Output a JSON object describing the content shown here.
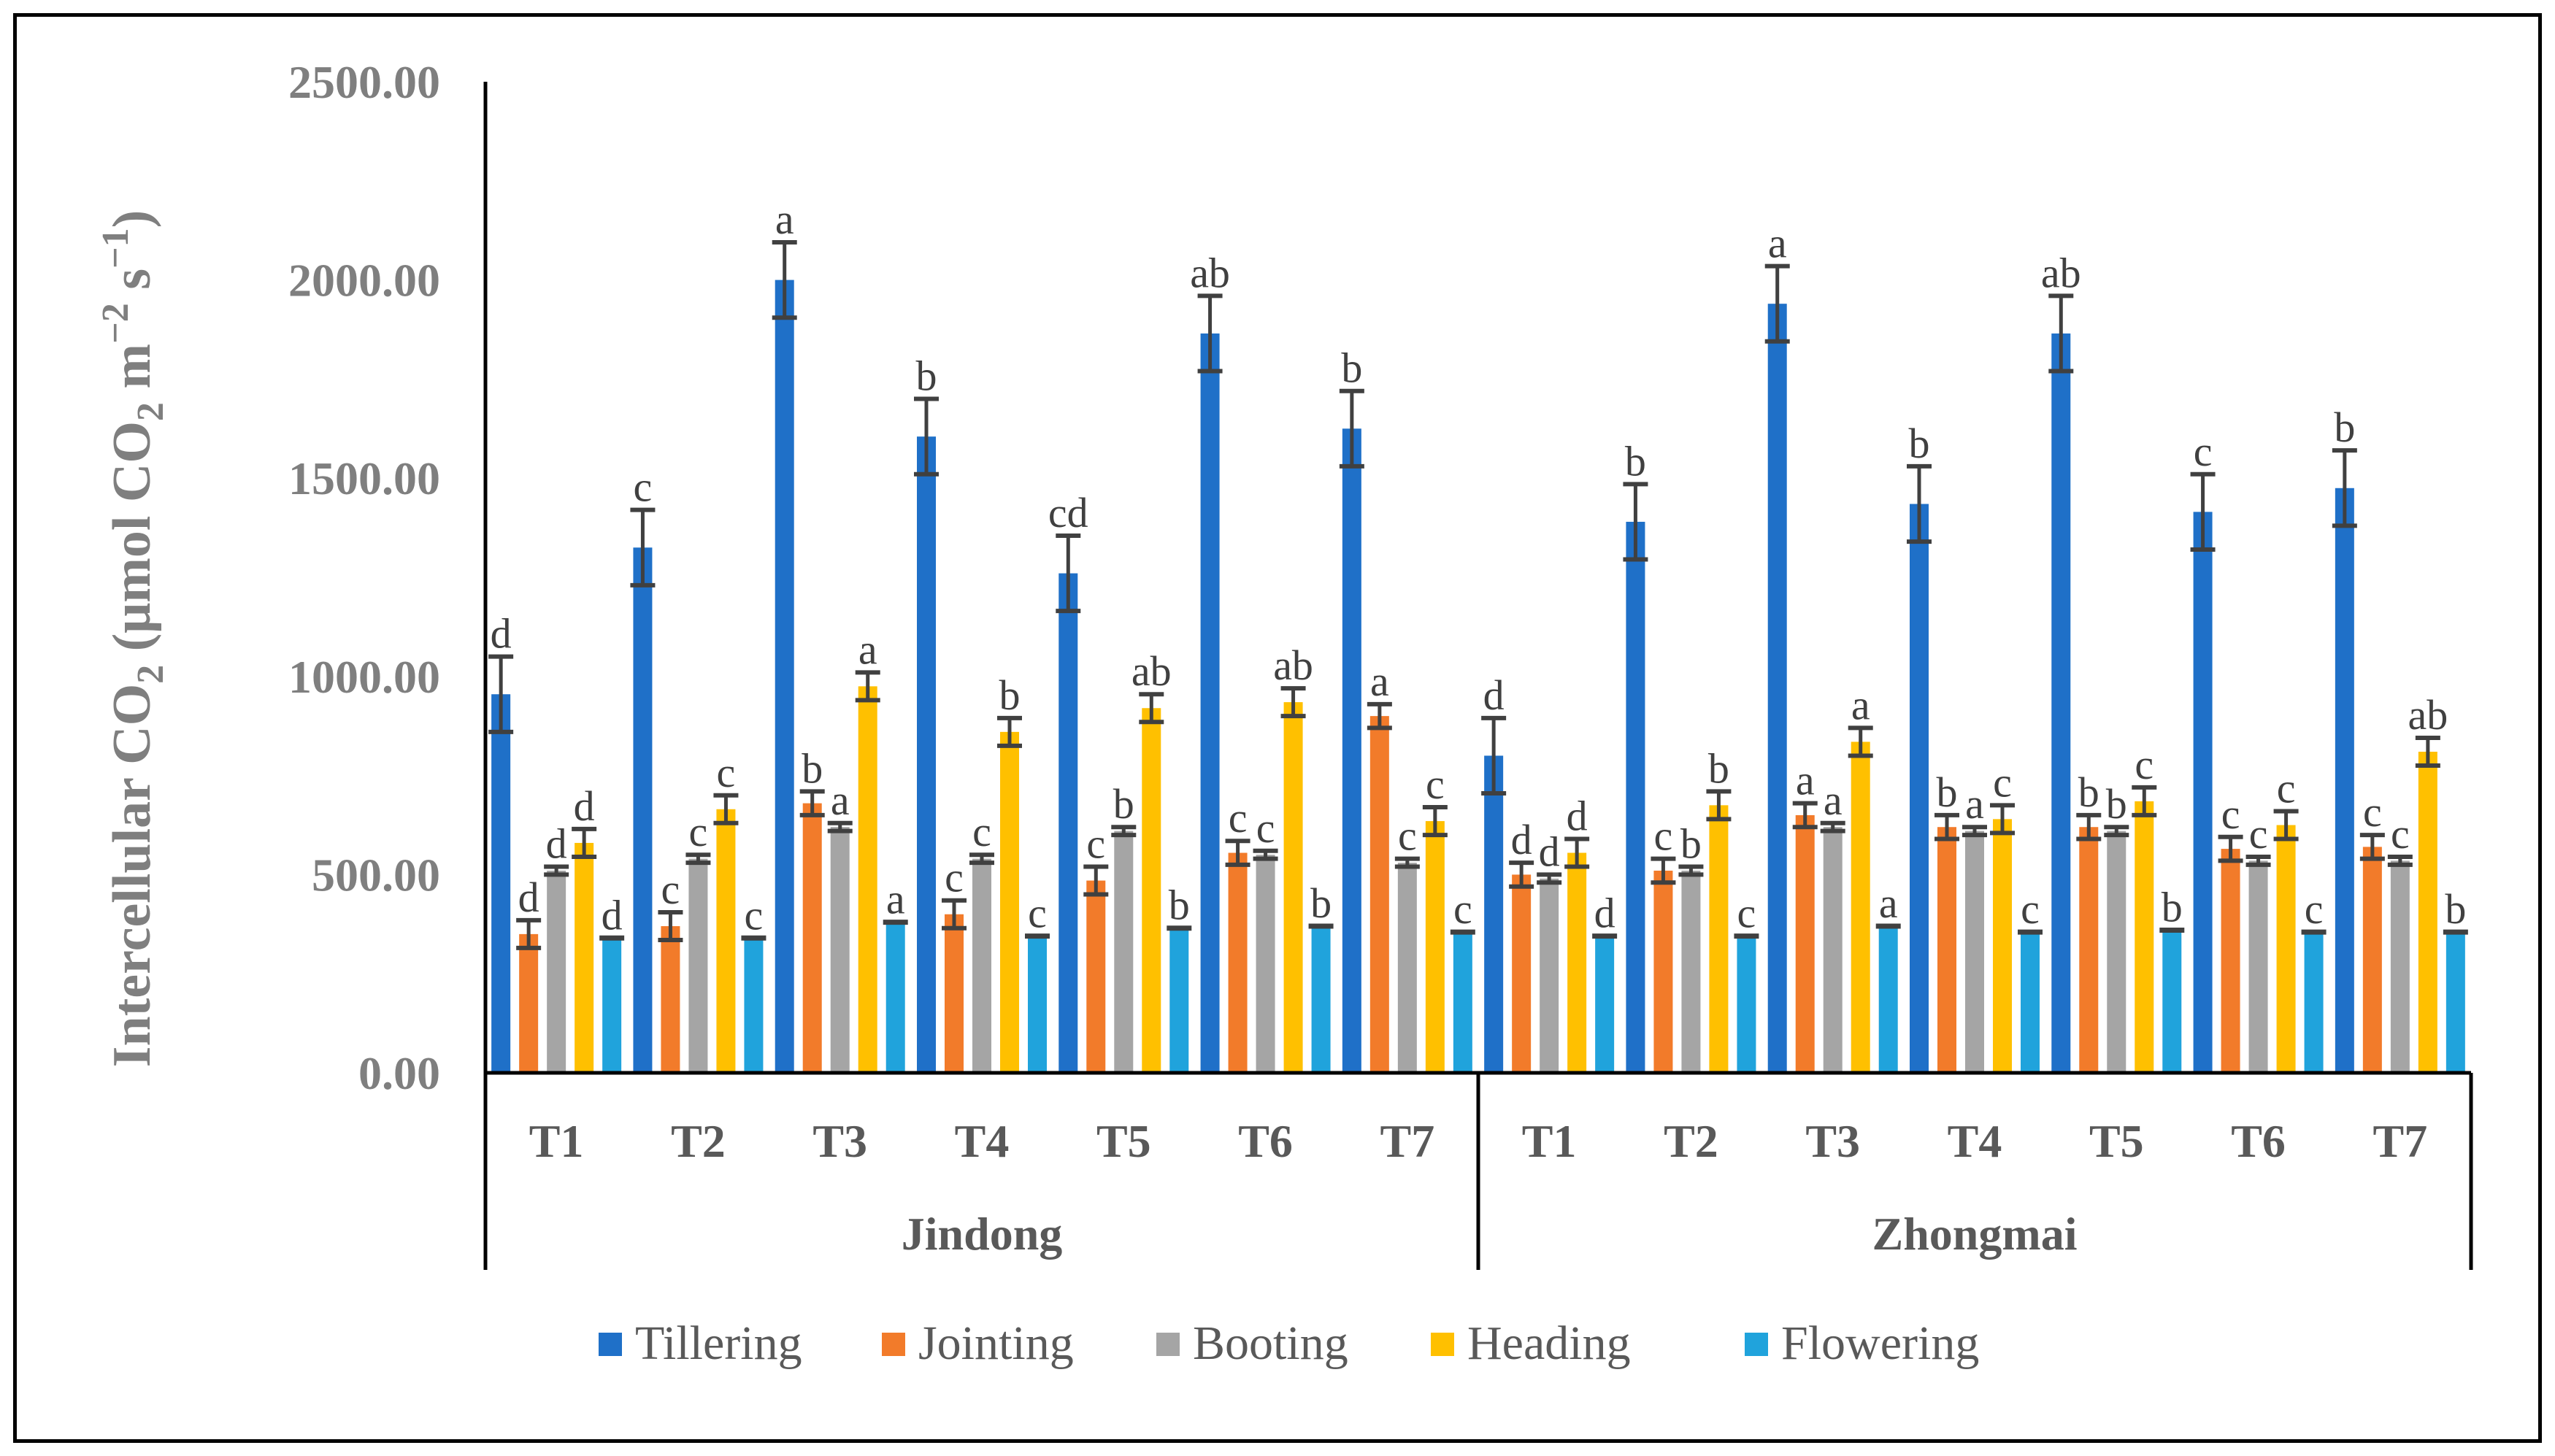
{
  "chart_data": {
    "type": "bar",
    "ylabel": "Intercellular CO",
    "ylabel_sub": "2",
    "ylabel_unit": {
      "open": "(μmol CO",
      "sub": "2",
      "m": "m",
      "m_sup": "−2",
      "s": "s",
      "s_sup": "−1",
      "close": ")"
    },
    "ylim": [
      0,
      2500
    ],
    "yticks": [
      "0.00",
      "500.00",
      "1000.00",
      "1500.00",
      "2000.00",
      "2500.00"
    ],
    "ytick_values": [
      0,
      500,
      1000,
      1500,
      2000,
      2500
    ],
    "groups": [
      {
        "name": "Jindong",
        "categories": [
          "T1",
          "T2",
          "T3",
          "T4",
          "T5",
          "T6",
          "T7"
        ]
      },
      {
        "name": "Zhongmai",
        "categories": [
          "T1",
          "T2",
          "T3",
          "T4",
          "T5",
          "T6",
          "T7"
        ]
      }
    ],
    "series": [
      {
        "name": "Tillering",
        "color": "#1f70c8",
        "values": [
          955,
          1325,
          2000,
          1605,
          1260,
          1865,
          1625,
          800,
          1390,
          1940,
          1435,
          1865,
          1415,
          1475
        ],
        "errors": [
          95,
          95,
          95,
          95,
          95,
          95,
          95,
          95,
          95,
          95,
          95,
          95,
          95,
          95
        ],
        "labels": [
          "d",
          "c",
          "a",
          "b",
          "cd",
          "ab",
          "b",
          "d",
          "b",
          "a",
          "b",
          "ab",
          "c",
          "b"
        ]
      },
      {
        "name": "Jointing",
        "color": "#f27b2a",
        "values": [
          350,
          370,
          680,
          400,
          485,
          555,
          900,
          500,
          510,
          650,
          620,
          620,
          565,
          570
        ],
        "errors": [
          35,
          35,
          30,
          35,
          35,
          30,
          30,
          30,
          30,
          30,
          30,
          30,
          30,
          30
        ],
        "labels": [
          "d",
          "c",
          "b",
          "c",
          "c",
          "c",
          "a",
          "d",
          "c",
          "a",
          "b",
          "b",
          "c",
          "c"
        ]
      },
      {
        "name": "Booting",
        "color": "#a5a5a5",
        "values": [
          510,
          540,
          620,
          540,
          610,
          550,
          530,
          490,
          510,
          620,
          610,
          610,
          535,
          535
        ],
        "errors": [
          10,
          10,
          10,
          10,
          10,
          10,
          10,
          10,
          10,
          10,
          10,
          10,
          10,
          10
        ],
        "labels": [
          "d",
          "c",
          "a",
          "c",
          "b",
          "c",
          "c",
          "d",
          "b",
          "a",
          "a",
          "b",
          "c",
          "c"
        ]
      },
      {
        "name": "Heading",
        "color": "#ffc000",
        "values": [
          580,
          665,
          975,
          860,
          920,
          935,
          635,
          555,
          675,
          835,
          640,
          685,
          625,
          810
        ],
        "errors": [
          35,
          35,
          35,
          35,
          35,
          35,
          35,
          35,
          35,
          35,
          35,
          35,
          35,
          35
        ],
        "labels": [
          "d",
          "c",
          "a",
          "b",
          "ab",
          "ab",
          "c",
          "d",
          "b",
          "a",
          "c",
          "c",
          "c",
          "ab"
        ]
      },
      {
        "name": "Flowering",
        "color": "#20a3dc",
        "values": [
          340,
          340,
          380,
          345,
          365,
          370,
          355,
          345,
          345,
          370,
          355,
          360,
          355,
          355
        ],
        "errors": [
          0,
          0,
          0,
          0,
          0,
          0,
          0,
          0,
          0,
          0,
          0,
          0,
          0,
          0
        ],
        "labels": [
          "d",
          "c",
          "a",
          "c",
          "b",
          "b",
          "c",
          "d",
          "c",
          "a",
          "c",
          "b",
          "c",
          "b"
        ]
      }
    ],
    "legend_position": "bottom",
    "grid": false
  }
}
